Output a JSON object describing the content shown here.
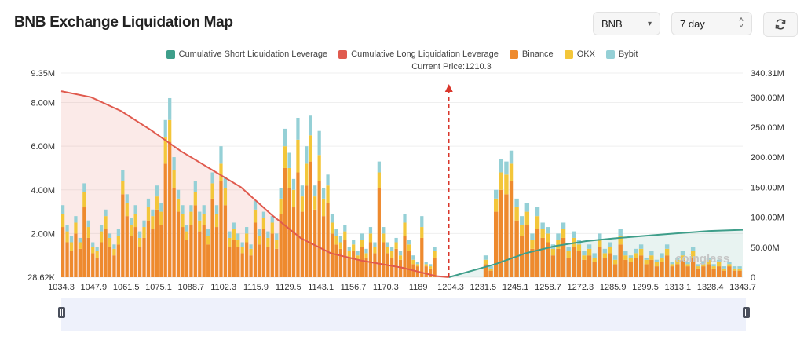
{
  "page": {
    "title": "BNB Exchange Liquidation Map",
    "symbol_select": {
      "value": "BNB"
    },
    "range_select": {
      "value": "7 day"
    },
    "refresh_icon": "refresh-icon",
    "watermark": "coinglass"
  },
  "chart_data": {
    "type": "bar",
    "title": "",
    "current_price_label": "Current Price:1210.3",
    "current_price": 1210.3,
    "x_ticks": [
      "1034.3",
      "1047.9",
      "1061.5",
      "1075.1",
      "1088.7",
      "1102.3",
      "1115.9",
      "1129.5",
      "1143.1",
      "1156.7",
      "1170.3",
      "1189",
      "1204.3",
      "1231.5",
      "1245.1",
      "1258.7",
      "1272.3",
      "1285.9",
      "1299.5",
      "1313.1",
      "1328.4",
      "1343.7"
    ],
    "y_left_ticks": [
      "9.35M",
      "8.00M",
      "6.00M",
      "4.00M",
      "2.00M",
      "28.62K"
    ],
    "y_right_ticks": [
      "340.31M",
      "300.00M",
      "250.00M",
      "200.00M",
      "150.00M",
      "100.00M",
      "50.00M",
      "0"
    ],
    "y_left_range": [
      0,
      9.35
    ],
    "y_right_range": [
      0,
      340.31
    ],
    "legend": [
      {
        "name": "Cumulative Short Liquidation Leverage",
        "color": "#3e9e8a"
      },
      {
        "name": "Cumulative Long Liquidation Leverage",
        "color": "#e05a4e"
      },
      {
        "name": "Binance",
        "color": "#ee8a2e"
      },
      {
        "name": "OKX",
        "color": "#f3c63a"
      },
      {
        "name": "Bybit",
        "color": "#95d0d6"
      }
    ],
    "x_range": [
      1034.3,
      1343.7
    ],
    "stack_values_millions": [
      [
        2.3,
        0.6,
        0.4
      ],
      [
        1.6,
        0.5,
        0.3
      ],
      [
        1.2,
        0.4,
        0.3
      ],
      [
        2.0,
        0.5,
        0.3
      ],
      [
        1.3,
        0.3,
        0.2
      ],
      [
        3.2,
        0.7,
        0.4
      ],
      [
        1.8,
        0.5,
        0.3
      ],
      [
        1.1,
        0.3,
        0.2
      ],
      [
        0.9,
        0.3,
        0.2
      ],
      [
        1.6,
        0.5,
        0.3
      ],
      [
        2.2,
        0.6,
        0.3
      ],
      [
        1.4,
        0.4,
        0.2
      ],
      [
        1.0,
        0.3,
        0.2
      ],
      [
        1.5,
        0.4,
        0.3
      ],
      [
        3.8,
        0.6,
        0.5
      ],
      [
        2.8,
        0.6,
        0.4
      ],
      [
        1.9,
        0.5,
        0.3
      ],
      [
        2.3,
        0.6,
        0.4
      ],
      [
        1.4,
        0.4,
        0.3
      ],
      [
        1.8,
        0.5,
        0.3
      ],
      [
        2.6,
        0.6,
        0.4
      ],
      [
        2.2,
        0.6,
        0.3
      ],
      [
        3.1,
        0.6,
        0.5
      ],
      [
        2.4,
        0.6,
        0.4
      ],
      [
        5.2,
        1.2,
        0.8
      ],
      [
        6.2,
        1.0,
        1.0
      ],
      [
        4.1,
        0.8,
        0.6
      ],
      [
        3.0,
        0.6,
        0.4
      ],
      [
        2.3,
        0.6,
        0.4
      ],
      [
        1.7,
        0.4,
        0.3
      ],
      [
        2.4,
        0.6,
        0.3
      ],
      [
        3.3,
        0.6,
        0.5
      ],
      [
        2.1,
        0.5,
        0.4
      ],
      [
        2.4,
        0.5,
        0.4
      ],
      [
        1.5,
        0.4,
        0.3
      ],
      [
        3.6,
        0.7,
        0.5
      ],
      [
        2.3,
        0.6,
        0.4
      ],
      [
        4.4,
        0.8,
        0.8
      ],
      [
        3.3,
        0.8,
        0.5
      ],
      [
        1.4,
        0.4,
        0.3
      ],
      [
        1.7,
        0.5,
        0.3
      ],
      [
        1.4,
        0.3,
        0.3
      ],
      [
        1.1,
        0.3,
        0.2
      ],
      [
        1.6,
        0.4,
        0.3
      ],
      [
        1.0,
        0.3,
        0.2
      ],
      [
        2.5,
        0.6,
        0.4
      ],
      [
        1.5,
        0.4,
        0.3
      ],
      [
        2.2,
        0.5,
        0.3
      ],
      [
        1.4,
        0.4,
        0.3
      ],
      [
        2.0,
        0.5,
        0.3
      ],
      [
        1.3,
        0.4,
        0.3
      ],
      [
        2.9,
        0.7,
        0.5
      ],
      [
        5.0,
        1.0,
        0.8
      ],
      [
        4.1,
        0.9,
        0.7
      ],
      [
        3.2,
        0.8,
        0.5
      ],
      [
        4.8,
        1.5,
        1.0
      ],
      [
        3.0,
        0.7,
        0.5
      ],
      [
        4.2,
        1.0,
        0.8
      ],
      [
        5.3,
        1.2,
        0.9
      ],
      [
        3.1,
        0.6,
        0.5
      ],
      [
        4.4,
        1.2,
        1.1
      ],
      [
        2.8,
        0.8,
        0.5
      ],
      [
        3.4,
        0.8,
        0.5
      ],
      [
        2.0,
        0.5,
        0.4
      ],
      [
        1.5,
        0.4,
        0.3
      ],
      [
        1.3,
        0.3,
        0.3
      ],
      [
        1.7,
        0.4,
        0.3
      ],
      [
        0.9,
        0.3,
        0.2
      ],
      [
        1.2,
        0.3,
        0.2
      ],
      [
        0.8,
        0.2,
        0.2
      ],
      [
        1.4,
        0.3,
        0.3
      ],
      [
        0.9,
        0.2,
        0.2
      ],
      [
        1.6,
        0.4,
        0.3
      ],
      [
        1.1,
        0.3,
        0.2
      ],
      [
        4.1,
        0.7,
        0.5
      ],
      [
        1.6,
        0.4,
        0.3
      ],
      [
        1.1,
        0.3,
        0.2
      ],
      [
        0.9,
        0.3,
        0.2
      ],
      [
        1.3,
        0.3,
        0.2
      ],
      [
        0.8,
        0.2,
        0.2
      ],
      [
        1.9,
        0.6,
        0.4
      ],
      [
        1.2,
        0.3,
        0.2
      ],
      [
        0.6,
        0.2,
        0.2
      ],
      [
        0.5,
        0.1,
        0.1
      ],
      [
        1.8,
        0.5,
        0.5
      ],
      [
        0.5,
        0.1,
        0.1
      ],
      [
        0.4,
        0.1,
        0.1
      ],
      [
        0.9,
        0.3,
        0.2
      ],
      [
        0.6,
        0.2,
        0.2
      ],
      [
        0.3,
        0.1,
        0.1
      ],
      [
        3.0,
        0.6,
        0.4
      ],
      [
        4.0,
        0.8,
        0.6
      ],
      [
        3.8,
        0.9,
        0.6
      ],
      [
        4.4,
        0.8,
        0.6
      ],
      [
        2.6,
        0.6,
        0.4
      ],
      [
        1.9,
        0.5,
        0.4
      ],
      [
        2.4,
        0.6,
        0.4
      ],
      [
        1.3,
        0.4,
        0.3
      ],
      [
        2.2,
        0.6,
        0.4
      ],
      [
        1.8,
        0.4,
        0.3
      ],
      [
        1.6,
        0.4,
        0.3
      ],
      [
        1.0,
        0.3,
        0.2
      ],
      [
        1.3,
        0.4,
        0.3
      ],
      [
        1.8,
        0.4,
        0.3
      ],
      [
        0.9,
        0.3,
        0.2
      ],
      [
        1.4,
        0.4,
        0.3
      ],
      [
        1.2,
        0.3,
        0.2
      ],
      [
        0.8,
        0.2,
        0.2
      ],
      [
        1.0,
        0.3,
        0.2
      ],
      [
        0.7,
        0.2,
        0.2
      ],
      [
        1.4,
        0.3,
        0.3
      ],
      [
        0.9,
        0.2,
        0.2
      ],
      [
        1.1,
        0.3,
        0.2
      ],
      [
        0.6,
        0.2,
        0.2
      ],
      [
        1.5,
        0.4,
        0.3
      ],
      [
        0.8,
        0.2,
        0.2
      ],
      [
        0.7,
        0.2,
        0.1
      ],
      [
        0.9,
        0.2,
        0.2
      ],
      [
        1.0,
        0.3,
        0.2
      ],
      [
        0.6,
        0.2,
        0.1
      ],
      [
        0.8,
        0.2,
        0.2
      ],
      [
        0.5,
        0.2,
        0.1
      ],
      [
        0.7,
        0.2,
        0.2
      ],
      [
        1.0,
        0.3,
        0.2
      ],
      [
        0.5,
        0.1,
        0.1
      ],
      [
        0.6,
        0.2,
        0.1
      ],
      [
        0.8,
        0.2,
        0.2
      ],
      [
        0.5,
        0.1,
        0.1
      ],
      [
        0.9,
        0.3,
        0.2
      ],
      [
        0.4,
        0.1,
        0.1
      ],
      [
        0.5,
        0.1,
        0.1
      ],
      [
        0.6,
        0.2,
        0.1
      ],
      [
        0.4,
        0.1,
        0.1
      ],
      [
        0.5,
        0.2,
        0.1
      ],
      [
        0.3,
        0.1,
        0.1
      ],
      [
        0.5,
        0.1,
        0.1
      ],
      [
        0.3,
        0.1,
        0.1
      ],
      [
        0.3,
        0.1,
        0.1
      ]
    ],
    "long_cumulative_millions": [
      {
        "x": 1034.3,
        "y": 310
      },
      {
        "x": 1047.9,
        "y": 300
      },
      {
        "x": 1061.5,
        "y": 277
      },
      {
        "x": 1075.1,
        "y": 245
      },
      {
        "x": 1088.7,
        "y": 210
      },
      {
        "x": 1102.3,
        "y": 180
      },
      {
        "x": 1115.9,
        "y": 150
      },
      {
        "x": 1129.5,
        "y": 105
      },
      {
        "x": 1143.1,
        "y": 65
      },
      {
        "x": 1156.7,
        "y": 40
      },
      {
        "x": 1170.3,
        "y": 28
      },
      {
        "x": 1189,
        "y": 16
      },
      {
        "x": 1204.3,
        "y": 2
      },
      {
        "x": 1210.3,
        "y": 0
      }
    ],
    "short_cumulative_millions": [
      {
        "x": 1210.3,
        "y": 0
      },
      {
        "x": 1231.5,
        "y": 22
      },
      {
        "x": 1245.1,
        "y": 40
      },
      {
        "x": 1258.7,
        "y": 52
      },
      {
        "x": 1272.3,
        "y": 60
      },
      {
        "x": 1285.9,
        "y": 65
      },
      {
        "x": 1299.5,
        "y": 69
      },
      {
        "x": 1313.1,
        "y": 73
      },
      {
        "x": 1328.4,
        "y": 77
      },
      {
        "x": 1343.7,
        "y": 79
      }
    ],
    "grid": true,
    "legend_position": "top-center"
  }
}
